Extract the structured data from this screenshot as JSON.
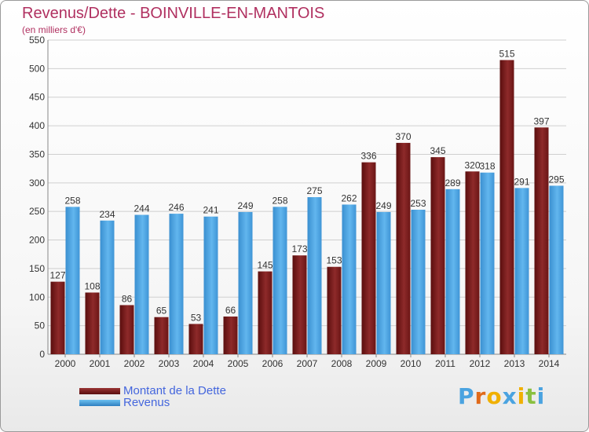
{
  "title": "Revenus/Dette - BOINVILLE-EN-MANTOIS",
  "subtitle": "(en milliers d'€)",
  "colors": {
    "dette": "#7a1c1c",
    "dette_light": "#9a3434",
    "revenus": "#4aa3e0",
    "revenus_dark": "#2f7fc0",
    "grid": "#cfcfcf",
    "text": "#333333",
    "title": "#b03060"
  },
  "chart_data": {
    "type": "bar",
    "title": "Revenus/Dette - BOINVILLE-EN-MANTOIS",
    "subtitle": "(en milliers d'€)",
    "categories": [
      "2000",
      "2001",
      "2002",
      "2003",
      "2004",
      "2005",
      "2006",
      "2007",
      "2008",
      "2009",
      "2010",
      "2011",
      "2012",
      "2013",
      "2014"
    ],
    "series": [
      {
        "name": "Montant de la Dette",
        "values": [
          127,
          108,
          86,
          65,
          53,
          66,
          145,
          173,
          153,
          336,
          370,
          345,
          320,
          515,
          397
        ]
      },
      {
        "name": "Revenus",
        "values": [
          258,
          234,
          244,
          246,
          241,
          249,
          258,
          275,
          262,
          249,
          253,
          289,
          318,
          291,
          295
        ]
      }
    ],
    "ylim": [
      0,
      550
    ],
    "yticks": [
      0,
      50,
      100,
      150,
      200,
      250,
      300,
      350,
      400,
      450,
      500,
      550
    ],
    "grid": true,
    "legend": "bottom-left"
  },
  "legend": [
    {
      "label": "Montant de la Dette",
      "color": "#7a1c1c"
    },
    {
      "label": "Revenus",
      "color": "#4aa3e0"
    }
  ],
  "logo": {
    "letters": [
      "P",
      "r",
      "o",
      "x",
      "i",
      "t",
      "i"
    ],
    "colors": [
      "#4aa3e0",
      "#e06a1a",
      "#f0b000",
      "#4aa3e0",
      "#f0b000",
      "#8ac040",
      "#4aa3e0"
    ]
  }
}
